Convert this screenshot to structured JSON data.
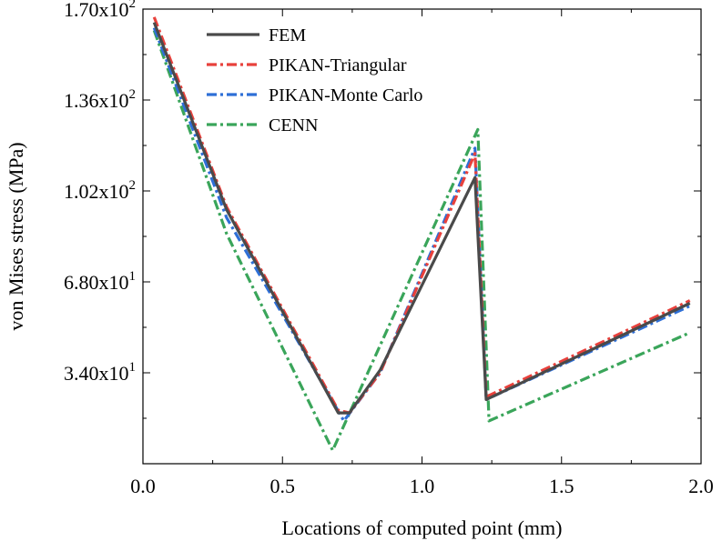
{
  "chart_data": {
    "type": "line",
    "xlabel": "Locations of computed point (mm)",
    "ylabel": "von Mises stress (MPa)",
    "xlim": [
      0.0,
      2.0
    ],
    "ylim": [
      0,
      170
    ],
    "x_ticks": [
      {
        "value": 0.0,
        "label": "0.0"
      },
      {
        "value": 0.5,
        "label": "0.5"
      },
      {
        "value": 1.0,
        "label": "1.0"
      },
      {
        "value": 1.5,
        "label": "1.5"
      },
      {
        "value": 2.0,
        "label": "2.0"
      }
    ],
    "y_ticks": [
      {
        "value": 34,
        "base": "3.40x10",
        "exp": "1"
      },
      {
        "value": 68,
        "base": "6.80x10",
        "exp": "1"
      },
      {
        "value": 102,
        "base": "1.02x10",
        "exp": "2"
      },
      {
        "value": 136,
        "base": "1.36x10",
        "exp": "2"
      },
      {
        "value": 170,
        "base": "1.70x10",
        "exp": "2"
      }
    ],
    "legend_position": "top-left",
    "series": [
      {
        "name": "FEM",
        "color": "#4a4a4a",
        "style": "solid",
        "x": [
          0.04,
          0.3,
          0.7,
          0.74,
          0.85,
          1.19,
          1.23,
          1.96
        ],
        "y": [
          165,
          95,
          19,
          19,
          35,
          107,
          24,
          60
        ]
      },
      {
        "name": "PIKAN-Triangular",
        "color": "#e8413c",
        "style": "dashdot",
        "x": [
          0.04,
          0.3,
          0.7,
          0.74,
          0.85,
          1.19,
          1.23,
          1.96
        ],
        "y": [
          167,
          96,
          20,
          19,
          34,
          116,
          25,
          61
        ]
      },
      {
        "name": "PIKAN-Monte Carlo",
        "color": "#2e6fd6",
        "style": "dashdot",
        "x": [
          0.04,
          0.3,
          0.72,
          0.85,
          1.19,
          1.23,
          1.96
        ],
        "y": [
          163,
          92,
          16,
          34,
          118,
          24,
          59
        ]
      },
      {
        "name": "CENN",
        "color": "#3aa55a",
        "style": "dashdot",
        "x": [
          0.04,
          0.3,
          0.68,
          1.2,
          1.24,
          1.96
        ],
        "y": [
          162,
          86,
          5,
          125,
          16,
          49
        ]
      }
    ]
  }
}
